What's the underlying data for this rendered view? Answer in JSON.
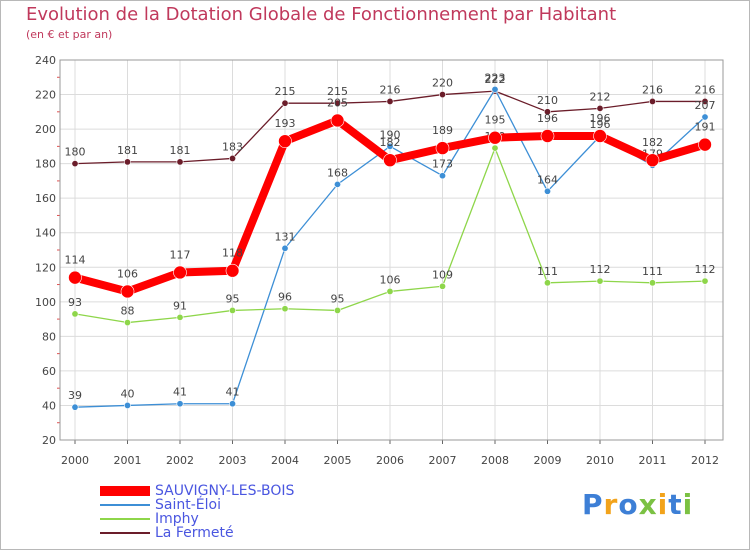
{
  "header": {
    "title": "Evolution de la Dotation Globale de Fonctionnement par Habitant",
    "subtitle": "(en € et par an)"
  },
  "logo": {
    "text": "Proxiti"
  },
  "chart_data": {
    "type": "line",
    "x": [
      2000,
      2001,
      2002,
      2003,
      2004,
      2005,
      2006,
      2007,
      2008,
      2009,
      2010,
      2011,
      2012
    ],
    "xtick_labels": [
      "2000",
      "2001",
      "2002",
      "2003",
      "2004",
      "2005",
      "2006",
      "2007",
      "2008",
      "2009",
      "2010",
      "2011",
      "2012"
    ],
    "ylim": [
      20,
      240
    ],
    "yticks": [
      20,
      40,
      60,
      80,
      100,
      120,
      140,
      160,
      180,
      200,
      220,
      240
    ],
    "grid": true,
    "series": [
      {
        "name": "La Fermeté",
        "color": "#6b1d2a",
        "values": [
          180,
          181,
          181,
          183,
          215,
          215,
          216,
          220,
          222,
          210,
          212,
          216,
          216
        ]
      },
      {
        "name": "Saint-Éloi",
        "color": "#3d8fd6",
        "values": [
          39,
          40,
          41,
          41,
          131,
          168,
          190,
          173,
          223,
          164,
          196,
          179,
          207
        ]
      },
      {
        "name": "Imphy",
        "color": "#8ed64a",
        "values": [
          93,
          88,
          91,
          95,
          96,
          95,
          106,
          109,
          189,
          111,
          112,
          111,
          112
        ]
      },
      {
        "name": "SAUVIGNY-LES-BOIS",
        "color": "#ff0000",
        "values": [
          114,
          106,
          117,
          118,
          193,
          205,
          182,
          189,
          195,
          196,
          196,
          182,
          191
        ]
      }
    ],
    "legend": [
      {
        "name": "SAUVIGNY-LES-BOIS",
        "color": "#ff0000"
      },
      {
        "name": "Saint-Éloi",
        "color": "#3d8fd6"
      },
      {
        "name": "Imphy",
        "color": "#8ed64a"
      },
      {
        "name": "La Fermeté",
        "color": "#6b1d2a"
      }
    ],
    "legend_position": "bottom-left"
  }
}
